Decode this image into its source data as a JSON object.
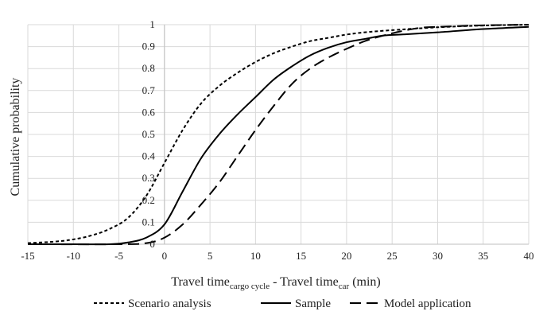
{
  "chart_data": {
    "type": "line",
    "xlim": [
      -15,
      40
    ],
    "ylim": [
      0,
      1
    ],
    "x_ticks": [
      "-15",
      "-10",
      "-5",
      "0",
      "5",
      "10",
      "15",
      "20",
      "25",
      "30",
      "35",
      "40"
    ],
    "y_ticks": [
      "0",
      "0.1",
      "0.2",
      "0.3",
      "0.4",
      "0.5",
      "0.6",
      "0.7",
      "0.8",
      "0.9",
      "1"
    ],
    "ylabel": "Cumulative probability",
    "xlabel": {
      "part1": "Travel time",
      "sub1": "cargo cycle",
      "part2": " - Travel time",
      "sub2": "car",
      "part3": " (min)"
    },
    "grid": true,
    "legend_position": "bottom",
    "series": [
      {
        "name": "Scenario analysis",
        "style": "short-dash",
        "color": "#000000",
        "x": [
          -15,
          -12,
          -10,
          -8,
          -6,
          -4,
          -2,
          0,
          2,
          4,
          6,
          8,
          10,
          12,
          14,
          16,
          18,
          20,
          22,
          25,
          30,
          35,
          40
        ],
        "y": [
          0.005,
          0.012,
          0.022,
          0.04,
          0.07,
          0.12,
          0.22,
          0.37,
          0.52,
          0.64,
          0.72,
          0.78,
          0.83,
          0.87,
          0.9,
          0.925,
          0.94,
          0.955,
          0.965,
          0.975,
          0.988,
          0.996,
          1.0
        ]
      },
      {
        "name": "Sample",
        "style": "solid",
        "color": "#000000",
        "x": [
          -15,
          -10,
          -6,
          -4,
          -2,
          0,
          2,
          4,
          6,
          8,
          10,
          12,
          14,
          16,
          18,
          20,
          22,
          24,
          26,
          30,
          35,
          40
        ],
        "y": [
          0.0,
          0.0,
          0.0,
          0.008,
          0.03,
          0.09,
          0.24,
          0.39,
          0.5,
          0.59,
          0.67,
          0.75,
          0.81,
          0.86,
          0.895,
          0.92,
          0.935,
          0.95,
          0.955,
          0.965,
          0.98,
          0.99
        ]
      },
      {
        "name": "Model application",
        "style": "long-dash",
        "color": "#000000",
        "x": [
          -15,
          -5,
          -2,
          0,
          2,
          4,
          6,
          8,
          10,
          12,
          14,
          16,
          18,
          20,
          22,
          24,
          26,
          28,
          30,
          35,
          40
        ],
        "y": [
          0.0,
          0.0,
          0.005,
          0.03,
          0.09,
          0.18,
          0.28,
          0.4,
          0.52,
          0.63,
          0.73,
          0.8,
          0.85,
          0.89,
          0.925,
          0.95,
          0.97,
          0.985,
          0.99,
          0.997,
          1.0
        ]
      }
    ]
  }
}
